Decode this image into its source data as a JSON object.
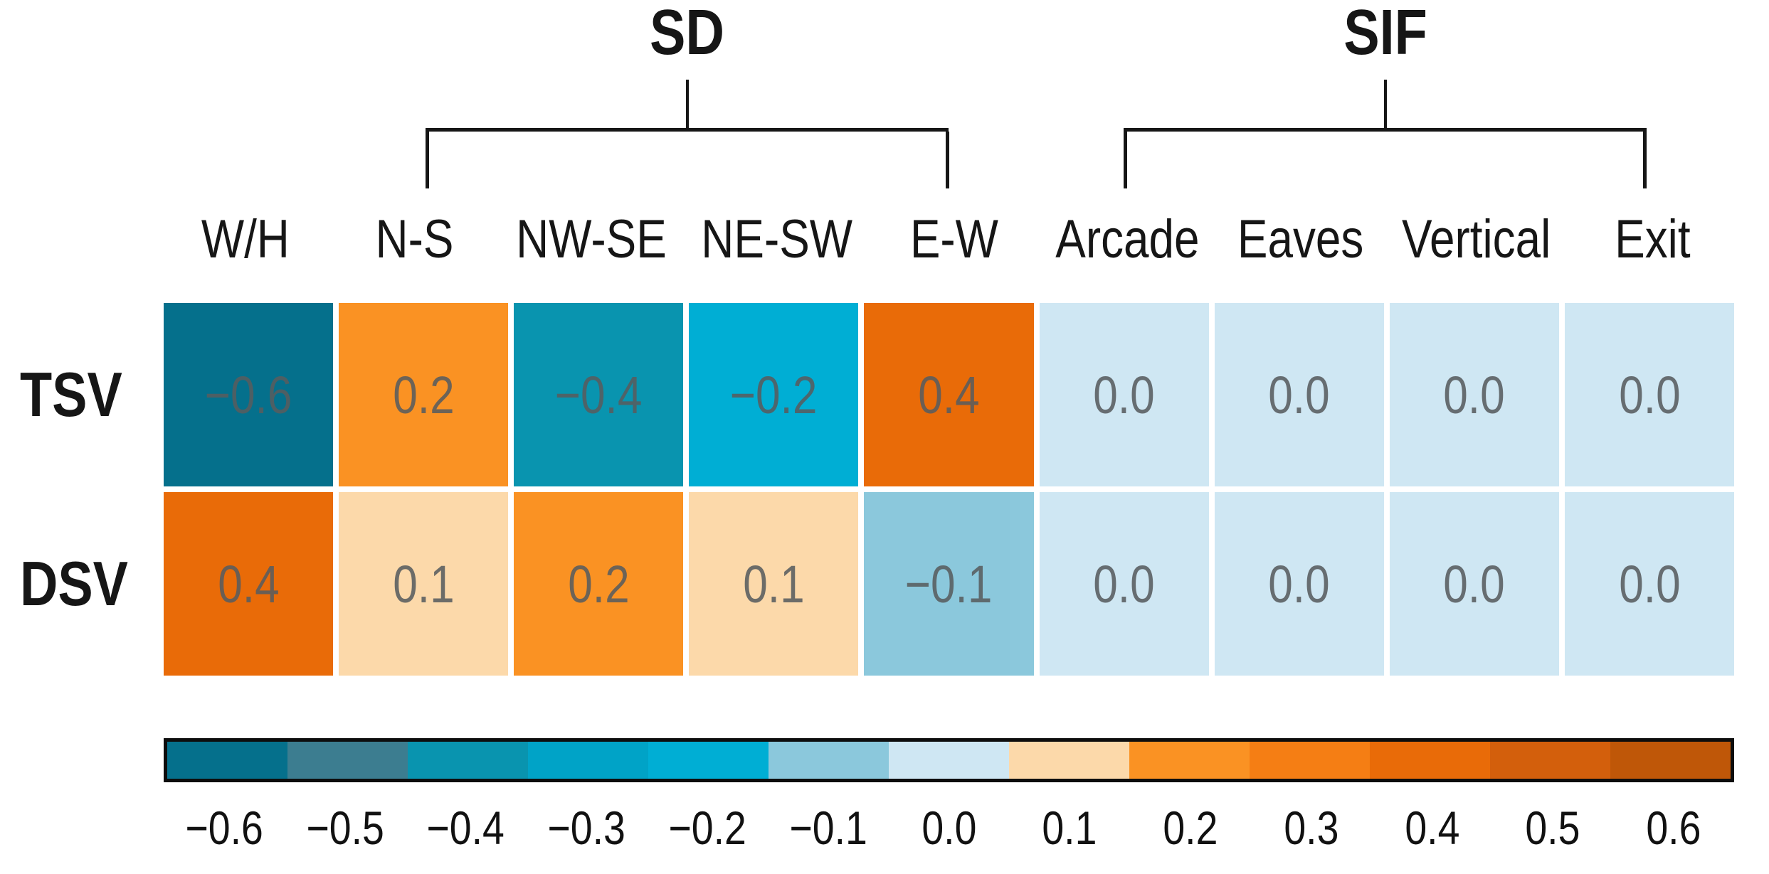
{
  "figure": {
    "group_headers": [
      {
        "label": "SD",
        "from_col": 1,
        "to_col": 4
      },
      {
        "label": "SIF",
        "from_col": 5,
        "to_col": 8
      }
    ],
    "column_headers": [
      "W/H",
      "N-S",
      "NW-SE",
      "NE-SW",
      "E-W",
      "Arcade",
      "Eaves",
      "Vertical",
      "Exit"
    ],
    "rows": [
      {
        "label": "TSV",
        "display": [
          "−0.6",
          "0.2",
          "−0.4",
          "−0.2",
          "0.4",
          "0.0",
          "0.0",
          "0.0",
          "0.0"
        ]
      },
      {
        "label": "DSV",
        "display": [
          "0.4",
          "0.1",
          "0.2",
          "0.1",
          "−0.1",
          "0.0",
          "0.0",
          "0.0",
          "0.0"
        ]
      }
    ],
    "cell_palette": {
      "-0.6": "#05708c",
      "-0.4": "#0994af",
      "-0.2": "#00aed4",
      "-0.1": "#8bc8dc",
      "0.0": "#cfe7f3",
      "0.1": "#fcd9aa",
      "0.2": "#fa9223",
      "0.4": "#e96b08"
    },
    "colorbar": {
      "segment_colors": [
        "#05708c",
        "#3c7d90",
        "#0994af",
        "#00a3c7",
        "#00aed4",
        "#8bc8dc",
        "#cfe7f3",
        "#fcd9aa",
        "#fa9223",
        "#f57e14",
        "#e96b08",
        "#d35f0c",
        "#bf5708"
      ],
      "tick_labels": [
        "−0.6",
        "−0.5",
        "−0.4",
        "−0.3",
        "−0.2",
        "−0.1",
        "0.0",
        "0.1",
        "0.2",
        "0.3",
        "0.4",
        "0.5",
        "0.6"
      ]
    },
    "line_color": "#161616"
  },
  "chart_data": {
    "type": "heatmap",
    "title": "",
    "x_categories": [
      "W/H",
      "N-S",
      "NW-SE",
      "NE-SW",
      "E-W",
      "Arcade",
      "Eaves",
      "Vertical",
      "Exit"
    ],
    "x_groups": [
      {
        "label": "SD",
        "columns": [
          "N-S",
          "NW-SE",
          "NE-SW",
          "E-W"
        ]
      },
      {
        "label": "SIF",
        "columns": [
          "Arcade",
          "Eaves",
          "Vertical",
          "Exit"
        ]
      }
    ],
    "y_categories": [
      "TSV",
      "DSV"
    ],
    "values": [
      [
        -0.6,
        0.2,
        -0.4,
        -0.2,
        0.4,
        0.0,
        0.0,
        0.0,
        0.0
      ],
      [
        0.4,
        0.1,
        0.2,
        0.1,
        -0.1,
        0.0,
        0.0,
        0.0,
        0.0
      ]
    ],
    "colorbar": {
      "min": -0.6,
      "max": 0.6,
      "step": 0.1,
      "ticks": [
        -0.6,
        -0.5,
        -0.4,
        -0.3,
        -0.2,
        -0.1,
        0.0,
        0.1,
        0.2,
        0.3,
        0.4,
        0.5,
        0.6
      ],
      "orientation": "horizontal",
      "position": "bottom",
      "discrete": true
    },
    "colormap": "diverging teal-cyan to orange-brown, 13 discrete bins",
    "legend_position": "none",
    "grid": false
  }
}
